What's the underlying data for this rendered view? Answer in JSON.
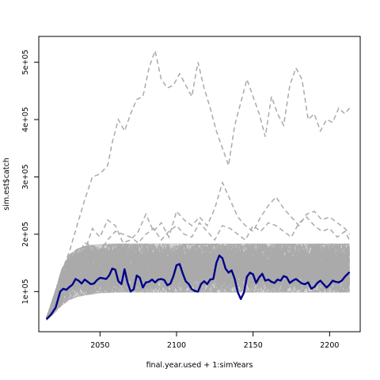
{
  "chart_data": {
    "type": "line",
    "xlabel": "final.year.used + 1:simYears",
    "ylabel": "sim.est$catch",
    "xlim": [
      2010,
      2220
    ],
    "ylim": [
      30000,
      545000
    ],
    "x_ticks": [
      2050,
      2100,
      2150,
      2200
    ],
    "x_tick_labels": [
      "2050",
      "2100",
      "2150",
      "2200"
    ],
    "y_ticks": [
      100000,
      200000,
      300000,
      400000,
      500000
    ],
    "y_tick_labels": [
      "1e+05",
      "2e+05",
      "3e+05",
      "4e+05",
      "5e+05"
    ],
    "grid": false,
    "background_band": {
      "color": "#aaaaaa",
      "x": [
        2015,
        2020,
        2025,
        2030,
        2035,
        2040,
        2045,
        2050,
        2060,
        2070,
        2080,
        2090,
        2100,
        2120,
        2140,
        2160,
        2180,
        2200,
        2213
      ],
      "lower": [
        50000,
        62000,
        75000,
        85000,
        90000,
        93000,
        95000,
        97000,
        98000,
        98000,
        98000,
        98000,
        98000,
        98000,
        98000,
        98000,
        98000,
        98000,
        98000
      ],
      "upper": [
        55000,
        95000,
        140000,
        165000,
        175000,
        180000,
        182000,
        183000,
        184000,
        184000,
        184000,
        184000,
        184000,
        184000,
        184000,
        184000,
        184000,
        184000,
        184000
      ]
    },
    "series": [
      {
        "color": "#00008b",
        "style": "solid",
        "x": [
          2015,
          2018,
          2021,
          2024,
          2026,
          2028,
          2030,
          2032,
          2034,
          2036,
          2038,
          2040,
          2042,
          2044,
          2046,
          2048,
          2050,
          2052,
          2054,
          2056,
          2058,
          2060,
          2062,
          2064,
          2066,
          2068,
          2070,
          2072,
          2074,
          2076,
          2078,
          2080,
          2082,
          2084,
          2086,
          2088,
          2090,
          2092,
          2094,
          2096,
          2098,
          2100,
          2102,
          2104,
          2106,
          2108,
          2110,
          2112,
          2114,
          2116,
          2118,
          2120,
          2122,
          2124,
          2126,
          2128,
          2130,
          2132,
          2134,
          2136,
          2138,
          2140,
          2142,
          2144,
          2146,
          2148,
          2150,
          2152,
          2154,
          2156,
          2158,
          2160,
          2162,
          2164,
          2166,
          2168,
          2170,
          2172,
          2174,
          2176,
          2178,
          2180,
          2182,
          2184,
          2186,
          2188,
          2190,
          2192,
          2194,
          2196,
          2198,
          2200,
          2202,
          2204,
          2206,
          2208,
          2210,
          2213
        ],
        "y": [
          52000,
          60000,
          72000,
          100000,
          105000,
          103000,
          108000,
          112000,
          122000,
          119000,
          114000,
          121000,
          117000,
          113000,
          114000,
          120000,
          124000,
          123000,
          122000,
          128000,
          140000,
          138000,
          118000,
          113000,
          139000,
          116000,
          100000,
          104000,
          128000,
          124000,
          107000,
          116000,
          117000,
          121000,
          116000,
          121000,
          122000,
          120000,
          111000,
          114000,
          127000,
          146000,
          148000,
          132000,
          118000,
          113000,
          104000,
          101000,
          100000,
          113000,
          118000,
          113000,
          121000,
          122000,
          150000,
          163000,
          158000,
          140000,
          133000,
          137000,
          122000,
          99000,
          87000,
          98000,
          126000,
          133000,
          130000,
          115000,
          125000,
          131000,
          119000,
          121000,
          117000,
          115000,
          121000,
          119000,
          127000,
          125000,
          115000,
          119000,
          122000,
          118000,
          114000,
          113000,
          116000,
          105000,
          108000,
          115000,
          119000,
          113000,
          107000,
          112000,
          119000,
          117000,
          116000,
          119000,
          126000,
          134000
        ]
      },
      {
        "color": "#aaaaaa",
        "style": "dashed",
        "x": [
          2015,
          2020,
          2025,
          2030,
          2035,
          2040,
          2045,
          2050,
          2055,
          2058,
          2062,
          2066,
          2070,
          2074,
          2078,
          2082,
          2086,
          2090,
          2094,
          2098,
          2102,
          2106,
          2110,
          2114,
          2118,
          2122,
          2126,
          2130,
          2134,
          2138,
          2142,
          2146,
          2150,
          2154,
          2158,
          2162,
          2166,
          2170,
          2174,
          2178,
          2182,
          2186,
          2190,
          2194,
          2198,
          2202,
          2206,
          2210,
          2213
        ],
        "y": [
          55000,
          90000,
          135000,
          170000,
          215000,
          260000,
          300000,
          305000,
          320000,
          360000,
          400000,
          380000,
          410000,
          435000,
          440000,
          490000,
          520000,
          470000,
          455000,
          460000,
          480000,
          460000,
          440000,
          500000,
          455000,
          420000,
          380000,
          350000,
          320000,
          390000,
          430000,
          470000,
          440000,
          410000,
          370000,
          440000,
          410000,
          390000,
          460000,
          490000,
          470000,
          400000,
          410000,
          380000,
          400000,
          395000,
          420000,
          410000,
          420000
        ]
      },
      {
        "color": "#aaaaaa",
        "style": "dashed",
        "x": [
          2015,
          2020,
          2025,
          2030,
          2035,
          2040,
          2045,
          2050,
          2055,
          2060,
          2065,
          2070,
          2075,
          2080,
          2085,
          2090,
          2095,
          2100,
          2105,
          2110,
          2115,
          2120,
          2125,
          2130,
          2135,
          2140,
          2145,
          2150,
          2155,
          2160,
          2165,
          2170,
          2175,
          2180,
          2185,
          2190,
          2195,
          2200,
          2205,
          2210,
          2213
        ],
        "y": [
          52000,
          85000,
          130000,
          150000,
          165000,
          170000,
          210000,
          195000,
          225000,
          215000,
          185000,
          190000,
          205000,
          235000,
          205000,
          220000,
          195000,
          240000,
          225000,
          215000,
          230000,
          215000,
          245000,
          290000,
          260000,
          230000,
          215000,
          205000,
          230000,
          250000,
          265000,
          245000,
          230000,
          215000,
          235000,
          240000,
          225000,
          230000,
          220000,
          210000,
          200000
        ]
      },
      {
        "color": "#aaaaaa",
        "style": "dashed",
        "x": [
          2015,
          2020,
          2025,
          2030,
          2035,
          2040,
          2045,
          2050,
          2055,
          2060,
          2065,
          2070,
          2075,
          2080,
          2085,
          2090,
          2095,
          2100,
          2105,
          2110,
          2115,
          2120,
          2125,
          2130,
          2135,
          2140,
          2145,
          2150,
          2155,
          2160,
          2165,
          2170,
          2175,
          2180,
          2185,
          2190,
          2195,
          2200,
          2205,
          2210,
          2213
        ],
        "y": [
          50000,
          80000,
          115000,
          145000,
          160000,
          185000,
          180000,
          170000,
          190000,
          205000,
          200000,
          195000,
          185000,
          200000,
          210000,
          190000,
          205000,
          215000,
          200000,
          195000,
          220000,
          205000,
          190000,
          215000,
          210000,
          200000,
          190000,
          215000,
          205000,
          220000,
          215000,
          205000,
          195000,
          220000,
          230000,
          215000,
          205000,
          210000,
          195000,
          205000,
          190000
        ]
      }
    ]
  }
}
